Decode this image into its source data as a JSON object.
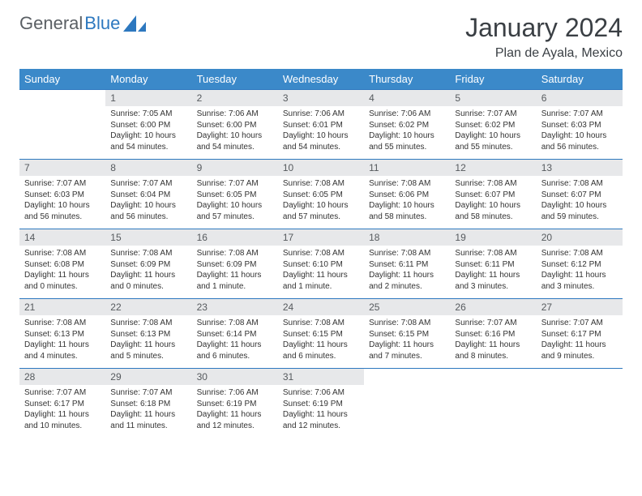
{
  "brand": {
    "part1": "General",
    "part2": "Blue"
  },
  "title": "January 2024",
  "location": "Plan de Ayala, Mexico",
  "colors": {
    "header_bg": "#3b89c9",
    "header_text": "#ffffff",
    "row_border": "#2d78bf",
    "daynum_bg": "#e7e8ea",
    "daynum_text": "#565a5e",
    "body_text": "#333333",
    "brand_gray": "#5a5f64",
    "brand_blue": "#2d78bf"
  },
  "weekdays": [
    "Sunday",
    "Monday",
    "Tuesday",
    "Wednesday",
    "Thursday",
    "Friday",
    "Saturday"
  ],
  "weeks": [
    [
      null,
      {
        "n": "1",
        "sr": "7:05 AM",
        "ss": "6:00 PM",
        "dl": "10 hours and 54 minutes."
      },
      {
        "n": "2",
        "sr": "7:06 AM",
        "ss": "6:00 PM",
        "dl": "10 hours and 54 minutes."
      },
      {
        "n": "3",
        "sr": "7:06 AM",
        "ss": "6:01 PM",
        "dl": "10 hours and 54 minutes."
      },
      {
        "n": "4",
        "sr": "7:06 AM",
        "ss": "6:02 PM",
        "dl": "10 hours and 55 minutes."
      },
      {
        "n": "5",
        "sr": "7:07 AM",
        "ss": "6:02 PM",
        "dl": "10 hours and 55 minutes."
      },
      {
        "n": "6",
        "sr": "7:07 AM",
        "ss": "6:03 PM",
        "dl": "10 hours and 56 minutes."
      }
    ],
    [
      {
        "n": "7",
        "sr": "7:07 AM",
        "ss": "6:03 PM",
        "dl": "10 hours and 56 minutes."
      },
      {
        "n": "8",
        "sr": "7:07 AM",
        "ss": "6:04 PM",
        "dl": "10 hours and 56 minutes."
      },
      {
        "n": "9",
        "sr": "7:07 AM",
        "ss": "6:05 PM",
        "dl": "10 hours and 57 minutes."
      },
      {
        "n": "10",
        "sr": "7:08 AM",
        "ss": "6:05 PM",
        "dl": "10 hours and 57 minutes."
      },
      {
        "n": "11",
        "sr": "7:08 AM",
        "ss": "6:06 PM",
        "dl": "10 hours and 58 minutes."
      },
      {
        "n": "12",
        "sr": "7:08 AM",
        "ss": "6:07 PM",
        "dl": "10 hours and 58 minutes."
      },
      {
        "n": "13",
        "sr": "7:08 AM",
        "ss": "6:07 PM",
        "dl": "10 hours and 59 minutes."
      }
    ],
    [
      {
        "n": "14",
        "sr": "7:08 AM",
        "ss": "6:08 PM",
        "dl": "11 hours and 0 minutes."
      },
      {
        "n": "15",
        "sr": "7:08 AM",
        "ss": "6:09 PM",
        "dl": "11 hours and 0 minutes."
      },
      {
        "n": "16",
        "sr": "7:08 AM",
        "ss": "6:09 PM",
        "dl": "11 hours and 1 minute."
      },
      {
        "n": "17",
        "sr": "7:08 AM",
        "ss": "6:10 PM",
        "dl": "11 hours and 1 minute."
      },
      {
        "n": "18",
        "sr": "7:08 AM",
        "ss": "6:11 PM",
        "dl": "11 hours and 2 minutes."
      },
      {
        "n": "19",
        "sr": "7:08 AM",
        "ss": "6:11 PM",
        "dl": "11 hours and 3 minutes."
      },
      {
        "n": "20",
        "sr": "7:08 AM",
        "ss": "6:12 PM",
        "dl": "11 hours and 3 minutes."
      }
    ],
    [
      {
        "n": "21",
        "sr": "7:08 AM",
        "ss": "6:13 PM",
        "dl": "11 hours and 4 minutes."
      },
      {
        "n": "22",
        "sr": "7:08 AM",
        "ss": "6:13 PM",
        "dl": "11 hours and 5 minutes."
      },
      {
        "n": "23",
        "sr": "7:08 AM",
        "ss": "6:14 PM",
        "dl": "11 hours and 6 minutes."
      },
      {
        "n": "24",
        "sr": "7:08 AM",
        "ss": "6:15 PM",
        "dl": "11 hours and 6 minutes."
      },
      {
        "n": "25",
        "sr": "7:08 AM",
        "ss": "6:15 PM",
        "dl": "11 hours and 7 minutes."
      },
      {
        "n": "26",
        "sr": "7:07 AM",
        "ss": "6:16 PM",
        "dl": "11 hours and 8 minutes."
      },
      {
        "n": "27",
        "sr": "7:07 AM",
        "ss": "6:17 PM",
        "dl": "11 hours and 9 minutes."
      }
    ],
    [
      {
        "n": "28",
        "sr": "7:07 AM",
        "ss": "6:17 PM",
        "dl": "11 hours and 10 minutes."
      },
      {
        "n": "29",
        "sr": "7:07 AM",
        "ss": "6:18 PM",
        "dl": "11 hours and 11 minutes."
      },
      {
        "n": "30",
        "sr": "7:06 AM",
        "ss": "6:19 PM",
        "dl": "11 hours and 12 minutes."
      },
      {
        "n": "31",
        "sr": "7:06 AM",
        "ss": "6:19 PM",
        "dl": "11 hours and 12 minutes."
      },
      null,
      null,
      null
    ]
  ],
  "labels": {
    "sunrise": "Sunrise:",
    "sunset": "Sunset:",
    "daylight": "Daylight:"
  }
}
